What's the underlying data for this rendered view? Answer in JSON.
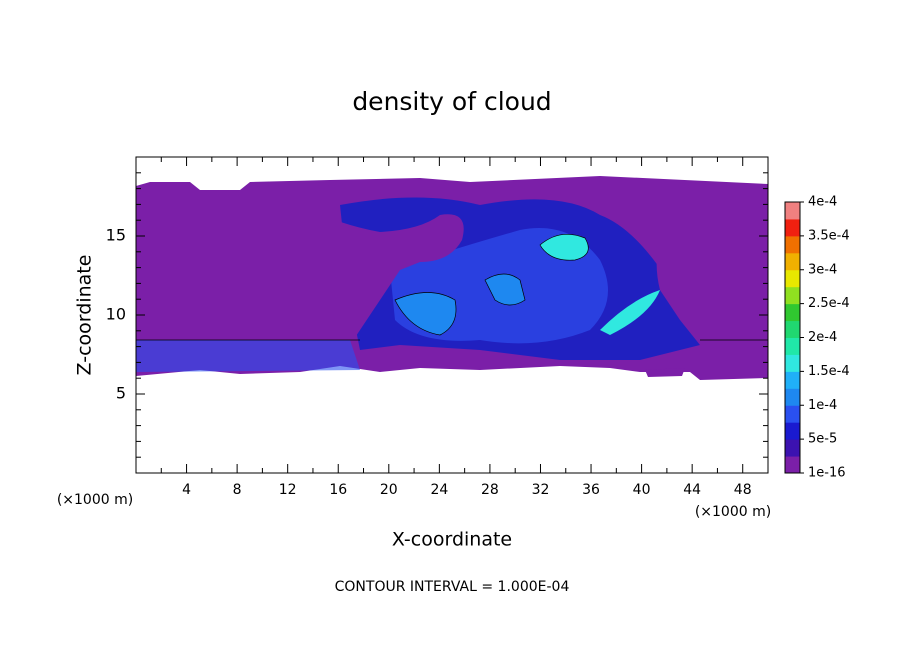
{
  "chart_data": {
    "type": "contour",
    "title": "density of cloud",
    "xlabel": "X-coordinate",
    "ylabel": "Z-coordinate",
    "x_unit_label": "(×1000 m)",
    "y_unit_label": "(×1000 m)",
    "annotation": "CONTOUR INTERVAL = 1.000E-04",
    "xlim": [
      0,
      50
    ],
    "ylim": [
      0,
      20
    ],
    "xticks": [
      4,
      8,
      12,
      16,
      20,
      24,
      28,
      32,
      36,
      40,
      44,
      48
    ],
    "yticks": [
      5,
      10,
      15
    ],
    "xminorticks": [
      2,
      6,
      10,
      14,
      18,
      22,
      26,
      30,
      34,
      38,
      42,
      46,
      50
    ],
    "yminorticks": [
      1,
      2,
      3,
      4,
      6,
      7,
      8,
      9,
      11,
      12,
      13,
      14,
      16,
      17,
      18,
      19
    ],
    "colorbar": {
      "clim": [
        1e-16,
        0.0004
      ],
      "ticks": [
        1e-16,
        {
          "value": 5e-05,
          "label": "5e-5"
        },
        {
          "value": 0.0001,
          "label": "1e-4"
        },
        {
          "value": 0.00015,
          "label": "1.5e-4"
        },
        {
          "value": 0.0002,
          "label": "2e-4"
        },
        {
          "value": 0.00025,
          "label": "2.5e-4"
        },
        {
          "value": 0.0003,
          "label": "3e-4"
        },
        {
          "value": 0.00035,
          "label": "3.5e-4"
        },
        {
          "value": 0.0004,
          "label": "4e-4"
        }
      ],
      "colors": [
        "#7b1fa8",
        "#3c12b0",
        "#1a1ad0",
        "#2a50f0",
        "#1e88f0",
        "#20b0f8",
        "#30e8e0",
        "#20e8a8",
        "#20d870",
        "#30c830",
        "#90e020",
        "#e8e800",
        "#f0b000",
        "#f07000",
        "#f02010",
        "#f08080"
      ]
    }
  }
}
